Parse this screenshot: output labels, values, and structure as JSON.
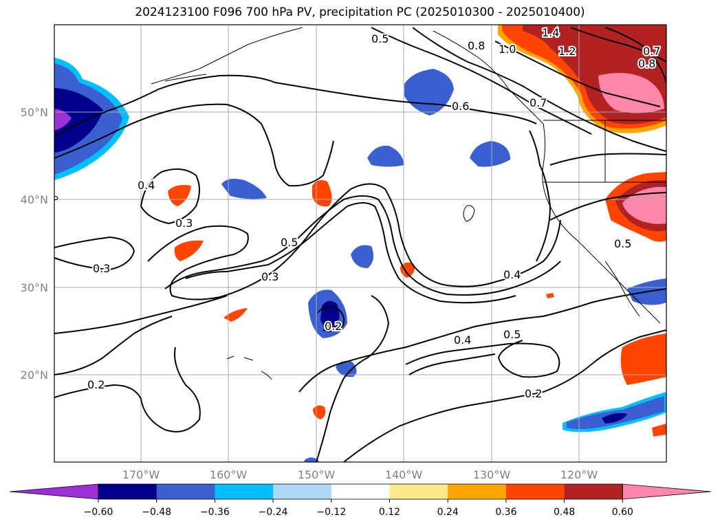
{
  "title": "2024123100 F096 700 hPa PV, precipitation PC (2025010300 - 2025010400)",
  "lat_labels": [
    "50°N",
    "40°N",
    "30°N",
    "20°N"
  ],
  "lon_labels": [
    "170°W",
    "160°W",
    "150°W",
    "140°W",
    "130°W",
    "120°W"
  ],
  "contour_labels": [
    "0.5",
    "0.8",
    "1.0",
    "1.2",
    "1.4",
    "0.7",
    "0.8",
    "0.6",
    "0.7",
    "0.4",
    "0.3",
    "0.5",
    "0.3",
    "0.3",
    "0.4",
    "0.2",
    "0.4",
    "0.5",
    "0.2",
    "0.2",
    "0.5"
  ],
  "colorbar": {
    "ticks": [
      "−0.60",
      "−0.48",
      "−0.36",
      "−0.24",
      "−0.12",
      "0.12",
      "0.24",
      "0.36",
      "0.48",
      "0.60"
    ],
    "colors": [
      "#9b30d6",
      "#00008b",
      "#3a5fd1",
      "#00bfff",
      "#add8f7",
      "#ffffff",
      "#ffe98a",
      "#ffa500",
      "#ff4500",
      "#b22222",
      "#ff88aa"
    ]
  },
  "colors": {
    "grid": "#a9a9a9",
    "contour": "#000000",
    "label_gray": "#808080"
  }
}
